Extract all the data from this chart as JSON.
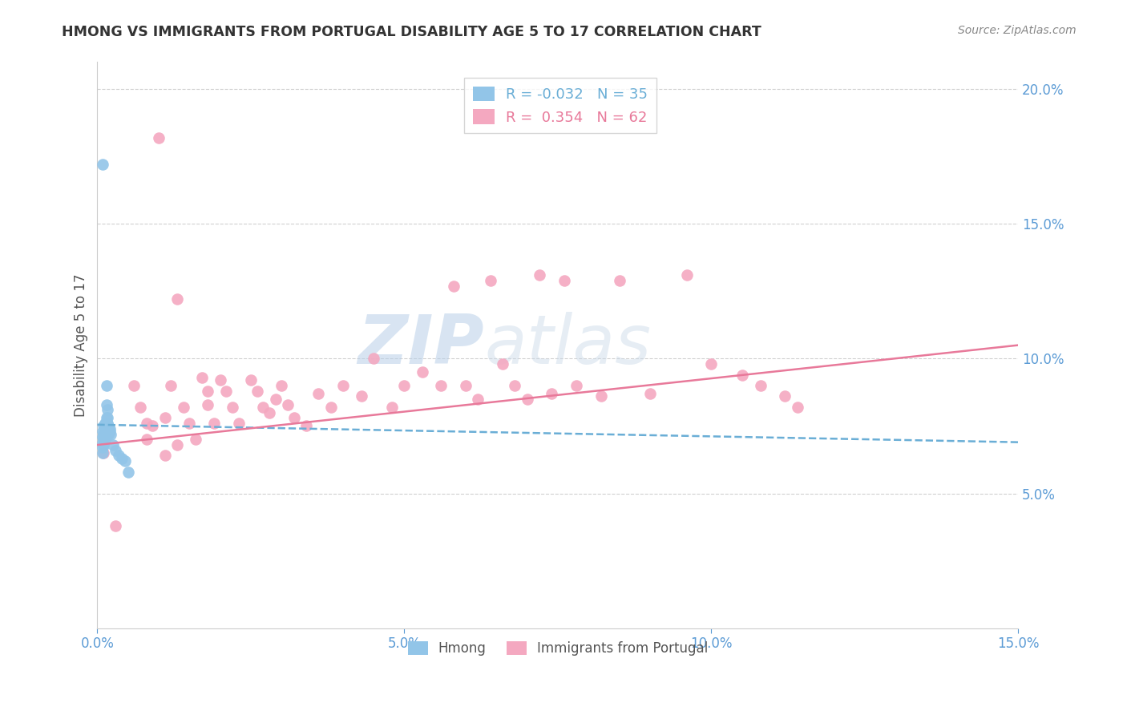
{
  "title": "HMONG VS IMMIGRANTS FROM PORTUGAL DISABILITY AGE 5 TO 17 CORRELATION CHART",
  "source": "Source: ZipAtlas.com",
  "ylabel": "Disability Age 5 to 17",
  "xlim": [
    0.0,
    0.15
  ],
  "ylim": [
    0.0,
    0.21
  ],
  "xticks": [
    0.0,
    0.05,
    0.1,
    0.15
  ],
  "xticklabels": [
    "0.0%",
    "5.0%",
    "10.0%",
    "15.0%"
  ],
  "yticks_right": [
    0.05,
    0.1,
    0.15,
    0.2
  ],
  "ytick_right_labels": [
    "5.0%",
    "10.0%",
    "15.0%",
    "20.0%"
  ],
  "hmong_color": "#92c5e8",
  "portugal_color": "#f4a8c0",
  "hmong_line_color": "#6aaed6",
  "portugal_line_color": "#e8799a",
  "hmong_R": -0.032,
  "hmong_N": 35,
  "portugal_R": 0.354,
  "portugal_N": 62,
  "legend_labels": [
    "Hmong",
    "Immigrants from Portugal"
  ],
  "watermark_zip": "ZIP",
  "watermark_atlas": "atlas",
  "background_color": "#ffffff",
  "title_color": "#333333",
  "axis_label_color": "#5b9bd5",
  "hmong_x": [
    0.0008,
    0.0008,
    0.0008,
    0.0008,
    0.0008,
    0.001,
    0.001,
    0.001,
    0.001,
    0.0012,
    0.0012,
    0.0012,
    0.0014,
    0.0014,
    0.0015,
    0.0015,
    0.0015,
    0.0016,
    0.0016,
    0.0016,
    0.0016,
    0.0017,
    0.0017,
    0.0018,
    0.0018,
    0.002,
    0.002,
    0.0022,
    0.0025,
    0.003,
    0.0035,
    0.004,
    0.0045,
    0.005,
    0.0008
  ],
  "hmong_y": [
    0.073,
    0.071,
    0.069,
    0.067,
    0.065,
    0.075,
    0.072,
    0.07,
    0.068,
    0.076,
    0.073,
    0.07,
    0.076,
    0.073,
    0.09,
    0.083,
    0.078,
    0.081,
    0.078,
    0.075,
    0.072,
    0.076,
    0.074,
    0.075,
    0.072,
    0.074,
    0.073,
    0.072,
    0.068,
    0.066,
    0.064,
    0.063,
    0.062,
    0.058,
    0.172
  ],
  "portugal_x": [
    0.001,
    0.003,
    0.006,
    0.007,
    0.008,
    0.008,
    0.009,
    0.01,
    0.011,
    0.011,
    0.012,
    0.013,
    0.013,
    0.014,
    0.015,
    0.016,
    0.017,
    0.018,
    0.018,
    0.019,
    0.02,
    0.021,
    0.022,
    0.023,
    0.025,
    0.026,
    0.027,
    0.028,
    0.029,
    0.03,
    0.031,
    0.032,
    0.034,
    0.036,
    0.038,
    0.04,
    0.043,
    0.045,
    0.048,
    0.05,
    0.053,
    0.056,
    0.058,
    0.06,
    0.062,
    0.064,
    0.066,
    0.068,
    0.07,
    0.072,
    0.074,
    0.076,
    0.078,
    0.082,
    0.085,
    0.09,
    0.096,
    0.1,
    0.105,
    0.108,
    0.112,
    0.114
  ],
  "portugal_y": [
    0.065,
    0.038,
    0.09,
    0.082,
    0.076,
    0.07,
    0.075,
    0.182,
    0.078,
    0.064,
    0.09,
    0.122,
    0.068,
    0.082,
    0.076,
    0.07,
    0.093,
    0.088,
    0.083,
    0.076,
    0.092,
    0.088,
    0.082,
    0.076,
    0.092,
    0.088,
    0.082,
    0.08,
    0.085,
    0.09,
    0.083,
    0.078,
    0.075,
    0.087,
    0.082,
    0.09,
    0.086,
    0.1,
    0.082,
    0.09,
    0.095,
    0.09,
    0.127,
    0.09,
    0.085,
    0.129,
    0.098,
    0.09,
    0.085,
    0.131,
    0.087,
    0.129,
    0.09,
    0.086,
    0.129,
    0.087,
    0.131,
    0.098,
    0.094,
    0.09,
    0.086,
    0.082
  ],
  "hmong_trend_x": [
    0.0,
    0.15
  ],
  "hmong_trend_y": [
    0.0755,
    0.069
  ],
  "portugal_trend_x": [
    0.0,
    0.15
  ],
  "portugal_trend_y": [
    0.068,
    0.105
  ]
}
